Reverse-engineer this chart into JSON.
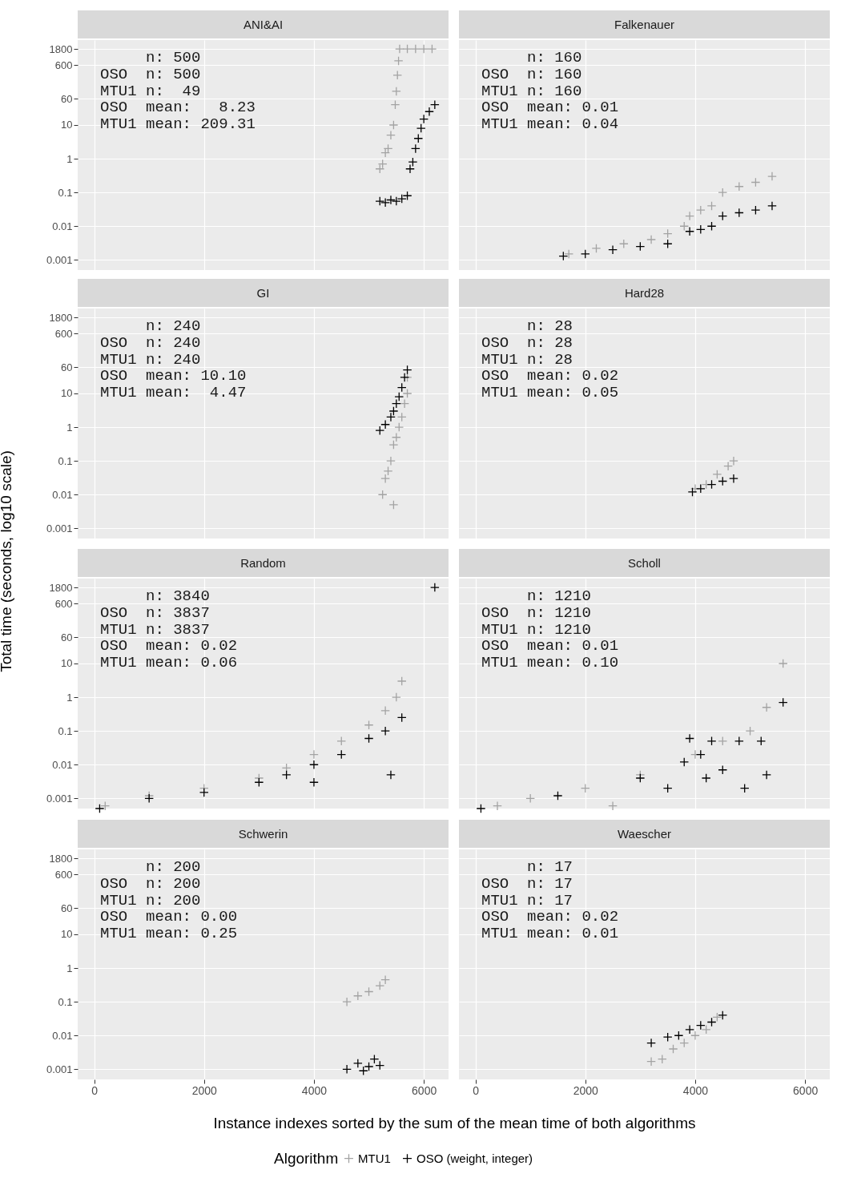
{
  "chart_data": [
    {
      "type": "scatter",
      "title": "ANI&AI",
      "log": "y",
      "xlim": [
        -300,
        6450
      ],
      "ylim": [
        0.0005,
        3300
      ],
      "xticks": [
        0,
        2000,
        4000,
        6000
      ],
      "yticks": [
        0.001,
        0.01,
        0.1,
        1,
        10,
        60,
        600,
        1800
      ],
      "grid": true,
      "marker": "cross",
      "tick_labels": "y",
      "annotations": [
        "     n: 500",
        "OSO  n: 500",
        "MTU1 n:  49",
        "OSO  mean:   8.23",
        "MTU1 mean: 209.31"
      ],
      "series": [
        {
          "color": "#a3a3a3",
          "x": [
            5200,
            5250,
            5300,
            5350,
            5400,
            5450,
            5480,
            5500,
            5520,
            5540,
            5560,
            5700,
            5850,
            6000,
            6150
          ],
          "values": [
            0.5,
            0.7,
            1.5,
            2,
            5,
            10,
            40,
            100,
            300,
            800,
            1800,
            1800,
            1800,
            1800,
            1800
          ]
        },
        {
          "color": "#000000",
          "x": [
            5200,
            5300,
            5400,
            5500,
            5600,
            5700,
            5750,
            5800,
            5850,
            5900,
            5950,
            6000,
            6100,
            6200
          ],
          "values": [
            0.055,
            0.05,
            0.06,
            0.055,
            0.065,
            0.08,
            0.5,
            0.8,
            2,
            4,
            8,
            15,
            25,
            40
          ]
        }
      ]
    },
    {
      "type": "scatter",
      "title": "Falkenauer",
      "log": "y",
      "xlim": [
        -300,
        6450
      ],
      "ylim": [
        0.0005,
        3300
      ],
      "xticks": [
        0,
        2000,
        4000,
        6000
      ],
      "yticks": [
        0.001,
        0.01,
        0.1,
        1,
        10,
        60,
        600,
        1800
      ],
      "grid": true,
      "marker": "cross",
      "tick_labels": false,
      "annotations": [
        "     n: 160",
        "OSO  n: 160",
        "MTU1 n: 160",
        "OSO  mean: 0.01",
        "MTU1 mean: 0.04"
      ],
      "series": [
        {
          "color": "#a3a3a3",
          "x": [
            1700,
            2200,
            2700,
            3200,
            3500,
            3800,
            3900,
            4100,
            4300,
            4500,
            4800,
            5100,
            5400
          ],
          "values": [
            0.0015,
            0.0022,
            0.003,
            0.004,
            0.006,
            0.01,
            0.02,
            0.03,
            0.04,
            0.1,
            0.15,
            0.2,
            0.3
          ]
        },
        {
          "color": "#000000",
          "x": [
            1600,
            2000,
            2500,
            3000,
            3500,
            3900,
            4100,
            4300,
            4500,
            4800,
            5100,
            5400
          ],
          "values": [
            0.0013,
            0.0015,
            0.002,
            0.0025,
            0.003,
            0.007,
            0.008,
            0.01,
            0.02,
            0.025,
            0.03,
            0.04
          ]
        }
      ]
    },
    {
      "type": "scatter",
      "title": "GI",
      "log": "y",
      "xlim": [
        -300,
        6450
      ],
      "ylim": [
        0.0005,
        3300
      ],
      "xticks": [
        0,
        2000,
        4000,
        6000
      ],
      "yticks": [
        0.001,
        0.01,
        0.1,
        1,
        10,
        60,
        600,
        1800
      ],
      "grid": true,
      "marker": "cross",
      "tick_labels": "y",
      "annotations": [
        "     n: 240",
        "OSO  n: 240",
        "MTU1 n: 240",
        "OSO  mean: 10.10",
        "MTU1 mean:  4.47"
      ],
      "series": [
        {
          "color": "#a3a3a3",
          "x": [
            5250,
            5300,
            5350,
            5400,
            5450,
            5450,
            5500,
            5550,
            5600,
            5650,
            5700,
            5700
          ],
          "values": [
            0.01,
            0.03,
            0.05,
            0.1,
            0.005,
            0.3,
            0.5,
            1,
            2,
            5,
            10,
            30
          ]
        },
        {
          "color": "#000000",
          "x": [
            5200,
            5300,
            5400,
            5450,
            5500,
            5550,
            5600,
            5650,
            5700
          ],
          "values": [
            0.8,
            1.2,
            2,
            3,
            5,
            8,
            15,
            30,
            50
          ]
        }
      ]
    },
    {
      "type": "scatter",
      "title": "Hard28",
      "log": "y",
      "xlim": [
        -300,
        6450
      ],
      "ylim": [
        0.0005,
        3300
      ],
      "xticks": [
        0,
        2000,
        4000,
        6000
      ],
      "yticks": [
        0.001,
        0.01,
        0.1,
        1,
        10,
        60,
        600,
        1800
      ],
      "grid": true,
      "marker": "cross",
      "tick_labels": false,
      "annotations": [
        "     n: 28",
        "OSO  n: 28",
        "MTU1 n: 28",
        "OSO  mean: 0.02",
        "MTU1 mean: 0.05"
      ],
      "series": [
        {
          "color": "#a3a3a3",
          "x": [
            4000,
            4200,
            4400,
            4600,
            4700
          ],
          "values": [
            0.015,
            0.02,
            0.04,
            0.07,
            0.1
          ]
        },
        {
          "color": "#000000",
          "x": [
            3950,
            4100,
            4300,
            4500,
            4700
          ],
          "values": [
            0.012,
            0.015,
            0.02,
            0.025,
            0.03
          ]
        }
      ]
    },
    {
      "type": "scatter",
      "title": "Random",
      "ylabel": "Total time (seconds, log10 scale)",
      "log": "y",
      "xlim": [
        -300,
        6450
      ],
      "ylim": [
        0.0005,
        3300
      ],
      "xticks": [
        0,
        2000,
        4000,
        6000
      ],
      "yticks": [
        0.001,
        0.01,
        0.1,
        1,
        10,
        60,
        600,
        1800
      ],
      "grid": true,
      "marker": "cross",
      "tick_labels": "y",
      "annotations": [
        "     n: 3840",
        "OSO  n: 3837",
        "MTU1 n: 3837",
        "OSO  mean: 0.02",
        "MTU1 mean: 0.06"
      ],
      "series": [
        {
          "color": "#a3a3a3",
          "x": [
            200,
            1000,
            2000,
            3000,
            3500,
            4000,
            4500,
            5000,
            5300,
            5500,
            5600
          ],
          "values": [
            0.0006,
            0.0012,
            0.002,
            0.004,
            0.008,
            0.02,
            0.05,
            0.15,
            0.4,
            1,
            3
          ]
        },
        {
          "color": "#000000",
          "x": [
            100,
            1000,
            2000,
            3000,
            3500,
            4000,
            4000,
            4500,
            5000,
            5300,
            5400,
            5600,
            6200
          ],
          "values": [
            0.0005,
            0.001,
            0.0015,
            0.003,
            0.005,
            0.003,
            0.01,
            0.02,
            0.06,
            0.1,
            0.005,
            0.25,
            1800
          ]
        }
      ]
    },
    {
      "type": "scatter",
      "title": "Scholl",
      "log": "y",
      "xlim": [
        -300,
        6450
      ],
      "ylim": [
        0.0005,
        3300
      ],
      "xticks": [
        0,
        2000,
        4000,
        6000
      ],
      "yticks": [
        0.001,
        0.01,
        0.1,
        1,
        10,
        60,
        600,
        1800
      ],
      "grid": true,
      "marker": "cross",
      "tick_labels": false,
      "annotations": [
        "     n: 1210",
        "OSO  n: 1210",
        "MTU1 n: 1210",
        "OSO  mean: 0.01",
        "MTU1 mean: 0.10"
      ],
      "series": [
        {
          "color": "#a3a3a3",
          "x": [
            400,
            1000,
            2000,
            2500,
            3000,
            4000,
            4500,
            5000,
            5300,
            5600
          ],
          "values": [
            0.0006,
            0.001,
            0.002,
            0.0006,
            0.005,
            0.02,
            0.05,
            0.1,
            0.5,
            10
          ]
        },
        {
          "color": "#000000",
          "x": [
            100,
            1500,
            3000,
            3500,
            3800,
            3900,
            4100,
            4200,
            4300,
            4500,
            4800,
            4900,
            5200,
            5300,
            5600
          ],
          "values": [
            0.0005,
            0.0012,
            0.004,
            0.002,
            0.012,
            0.06,
            0.02,
            0.004,
            0.05,
            0.007,
            0.05,
            0.002,
            0.05,
            0.005,
            0.7
          ]
        }
      ]
    },
    {
      "type": "scatter",
      "title": "Schwerin",
      "log": "y",
      "xlim": [
        -300,
        6450
      ],
      "ylim": [
        0.0005,
        3300
      ],
      "xticks": [
        0,
        2000,
        4000,
        6000
      ],
      "yticks": [
        0.001,
        0.01,
        0.1,
        1,
        10,
        60,
        600,
        1800
      ],
      "grid": true,
      "marker": "cross",
      "xlabel": "Instance indexes sorted by the sum of the mean time of both algorithms",
      "legend": "bottom",
      "legend_title": "Algorithm",
      "annotations": [
        "     n: 200",
        "OSO  n: 200",
        "MTU1 n: 200",
        "OSO  mean: 0.00",
        "MTU1 mean: 0.25"
      ],
      "series": [
        {
          "name": "MTU1",
          "color": "#a3a3a3",
          "x": [
            4600,
            4800,
            5000,
            5200,
            5300
          ],
          "values": [
            0.1,
            0.15,
            0.2,
            0.3,
            0.45
          ]
        },
        {
          "name": "OSO (weight, integer)",
          "color": "#000000",
          "x": [
            4600,
            4800,
            4900,
            5000,
            5100,
            5200
          ],
          "values": [
            0.001,
            0.0015,
            0.0009,
            0.0012,
            0.002,
            0.0013
          ]
        }
      ]
    },
    {
      "type": "scatter",
      "title": "Waescher",
      "log": "y",
      "xlim": [
        -300,
        6450
      ],
      "ylim": [
        0.0005,
        3300
      ],
      "xticks": [
        0,
        2000,
        4000,
        6000
      ],
      "yticks": [
        0.001,
        0.01,
        0.1,
        1,
        10,
        60,
        600,
        1800
      ],
      "grid": true,
      "marker": "cross",
      "tick_labels": "x",
      "annotations": [
        "     n: 17",
        "OSO  n: 17",
        "MTU1 n: 17",
        "OSO  mean: 0.02",
        "MTU1 mean: 0.01"
      ],
      "series": [
        {
          "color": "#a3a3a3",
          "x": [
            3200,
            3400,
            3600,
            3800,
            4000,
            4200,
            4400
          ],
          "values": [
            0.0017,
            0.002,
            0.004,
            0.006,
            0.01,
            0.015,
            0.035
          ]
        },
        {
          "color": "#000000",
          "x": [
            3200,
            3500,
            3700,
            3900,
            4100,
            4300,
            4500
          ],
          "values": [
            0.006,
            0.009,
            0.01,
            0.015,
            0.02,
            0.025,
            0.04
          ]
        }
      ]
    }
  ]
}
